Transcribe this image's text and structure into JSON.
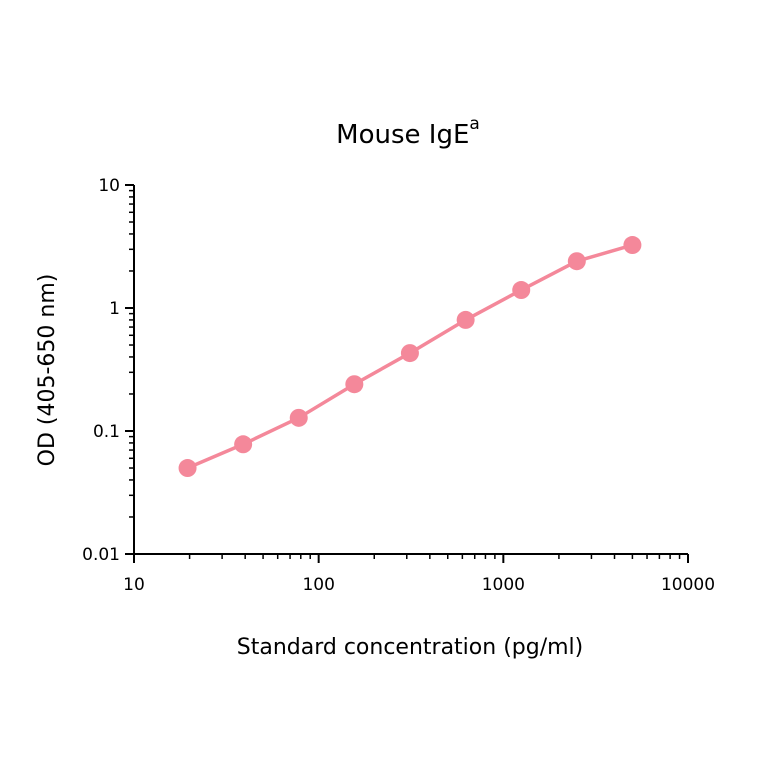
{
  "chart_data": {
    "type": "line",
    "title": "Mouse IgE",
    "title_superscript": "a",
    "xlabel": "Standard concentration (pg/ml)",
    "ylabel": "OD (405-650 nm)",
    "xscale": "log",
    "yscale": "log",
    "xlim": [
      10,
      10000
    ],
    "ylim": [
      0.01,
      10
    ],
    "xticks": [
      "10",
      "100",
      "1000",
      "10000"
    ],
    "yticks": [
      "0.01",
      "0.1",
      "1",
      "10"
    ],
    "grid": false,
    "legend": "none",
    "series": [
      {
        "color": "#f4889a",
        "x": [
          19.5,
          39,
          78,
          156,
          312,
          625,
          1250,
          2500,
          5000
        ],
        "y": [
          0.05,
          0.078,
          0.128,
          0.24,
          0.43,
          0.8,
          1.4,
          2.4,
          3.25
        ]
      }
    ]
  }
}
